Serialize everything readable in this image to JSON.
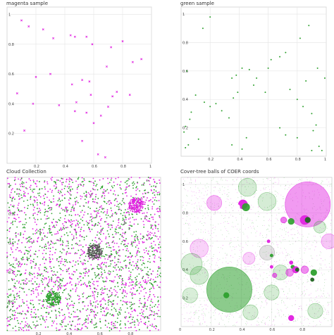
{
  "chart_data": [
    {
      "type": "scatter",
      "title": "magenta sample",
      "xlim": [
        0,
        1
      ],
      "ylim": [
        0,
        1.05
      ],
      "xticks": [
        "0.2",
        "0.4",
        "0.6",
        "0.8",
        "1"
      ],
      "yticks": [
        "0.2",
        "0.4",
        "0.6",
        "0.8",
        "1"
      ],
      "grid": true,
      "series": [
        {
          "color": "#e020e0",
          "marker": "x",
          "points": [
            [
              0.1,
              0.96
            ],
            [
              0.15,
              0.92
            ],
            [
              0.25,
              0.9
            ],
            [
              0.32,
              0.84
            ],
            [
              0.44,
              0.86
            ],
            [
              0.47,
              0.85
            ],
            [
              0.55,
              0.85
            ],
            [
              0.59,
              0.8
            ],
            [
              0.72,
              0.78
            ],
            [
              0.8,
              0.82
            ],
            [
              0.07,
              0.47
            ],
            [
              0.2,
              0.58
            ],
            [
              0.3,
              0.6
            ],
            [
              0.45,
              0.53
            ],
            [
              0.52,
              0.56
            ],
            [
              0.57,
              0.55
            ],
            [
              0.58,
              0.46
            ],
            [
              0.69,
              0.65
            ],
            [
              0.73,
              0.45
            ],
            [
              0.7,
              0.38
            ],
            [
              0.76,
              0.48
            ],
            [
              0.87,
              0.68
            ],
            [
              0.85,
              0.46
            ],
            [
              0.93,
              0.7
            ],
            [
              0.18,
              0.4
            ],
            [
              0.36,
              0.39
            ],
            [
              0.47,
              0.35
            ],
            [
              0.48,
              0.41
            ],
            [
              0.52,
              0.15
            ],
            [
              0.55,
              0.34
            ],
            [
              0.6,
              0.27
            ],
            [
              0.63,
              0.06
            ],
            [
              0.68,
              0.04
            ],
            [
              0.65,
              0.32
            ],
            [
              0.12,
              0.22
            ]
          ]
        }
      ]
    },
    {
      "type": "scatter",
      "title": "green sample",
      "xlim": [
        0,
        1
      ],
      "ylim": [
        0,
        1.05
      ],
      "xticks": [
        "0.2",
        "0.4",
        "0.6",
        "0.8",
        "1"
      ],
      "yticks": [
        "0.2",
        "0.4",
        "0.6",
        "0.8",
        "1"
      ],
      "grid": true,
      "series": [
        {
          "color": "#2ea02e",
          "marker": "dot",
          "points": [
            [
              0.15,
              0.9
            ],
            [
              0.2,
              0.98
            ],
            [
              0.04,
              0.6
            ],
            [
              0.1,
              0.43
            ],
            [
              0.16,
              0.38
            ],
            [
              0.2,
              0.35
            ],
            [
              0.24,
              0.37
            ],
            [
              0.28,
              0.32
            ],
            [
              0.33,
              0.27
            ],
            [
              0.35,
              0.55
            ],
            [
              0.38,
              0.57
            ],
            [
              0.39,
              0.45
            ],
            [
              0.42,
              0.62
            ],
            [
              0.47,
              0.61
            ],
            [
              0.5,
              0.5
            ],
            [
              0.52,
              0.55
            ],
            [
              0.6,
              0.62
            ],
            [
              0.62,
              0.68
            ],
            [
              0.68,
              0.7
            ],
            [
              0.72,
              0.73
            ],
            [
              0.75,
              0.47
            ],
            [
              0.82,
              0.83
            ],
            [
              0.88,
              0.92
            ],
            [
              0.8,
              0.4
            ],
            [
              0.84,
              0.35
            ],
            [
              0.9,
              0.3
            ],
            [
              0.93,
              0.22
            ],
            [
              0.95,
              0.07
            ],
            [
              0.97,
              0.04
            ],
            [
              0.9,
              0.04
            ],
            [
              0.03,
              0.06
            ],
            [
              0.05,
              0.08
            ],
            [
              0.12,
              0.12
            ],
            [
              0.02,
              0.17
            ],
            [
              0.03,
              0.21
            ],
            [
              0.06,
              0.26
            ],
            [
              0.07,
              0.31
            ],
            [
              0.35,
              0.08
            ],
            [
              0.42,
              0.05
            ],
            [
              0.68,
              0.2
            ],
            [
              0.58,
              0.45
            ],
            [
              0.36,
              0.41
            ],
            [
              0.45,
              0.13
            ],
            [
              0.72,
              0.15
            ],
            [
              0.86,
              0.53
            ],
            [
              0.94,
              0.62
            ],
            [
              0.99,
              0.55
            ],
            [
              0.8,
              0.13
            ],
            [
              0.91,
              0.18
            ]
          ]
        }
      ]
    },
    {
      "type": "scatter",
      "title": "Cloud Collection",
      "xlim": [
        0,
        1
      ],
      "ylim": [
        0,
        1.05
      ],
      "xticks": [
        "0.2",
        "0.4",
        "0.6",
        "0.8"
      ],
      "yticks": [
        "0.2",
        "0.4",
        "0.6",
        "0.8",
        "1"
      ],
      "grid": false,
      "series": [
        {
          "color": "#e020e0",
          "name": "",
          "density": "dense uniform"
        },
        {
          "color": "#2ea02e",
          "name": "",
          "density": "dense uniform"
        },
        {
          "color": "#555555",
          "name": "",
          "density": "dense uniform"
        }
      ],
      "clusters": [
        {
          "center": [
            0.84,
            0.86
          ],
          "radius": 0.05,
          "color": "#e020e0"
        },
        {
          "center": [
            0.57,
            0.54
          ],
          "radius": 0.05,
          "color": "#555555"
        },
        {
          "center": [
            0.3,
            0.22
          ],
          "radius": 0.05,
          "color": "#2ea02e"
        }
      ]
    },
    {
      "type": "scatter",
      "title": "Cover-tree balls of COER coords",
      "xlim": [
        0,
        1
      ],
      "ylim": [
        0,
        1.05
      ],
      "xticks": [
        "0",
        "0.2",
        "0.4",
        "0.6",
        "0.8"
      ],
      "yticks": [
        "0.2",
        "0.4",
        "0.6",
        "0.8",
        "1"
      ],
      "grid": true,
      "balls": [
        {
          "center": [
            0.84,
            0.86
          ],
          "r": 0.15,
          "color": "#e020e0",
          "opacity": 0.45
        },
        {
          "center": [
            0.32,
            0.26
          ],
          "r": 0.15,
          "color": "#2ea02e",
          "opacity": 0.55
        },
        {
          "center": [
            0.12,
            0.55
          ],
          "r": 0.06,
          "color": "#e020e0",
          "opacity": 0.2
        },
        {
          "center": [
            0.07,
            0.44
          ],
          "r": 0.07,
          "color": "#2ea02e",
          "opacity": 0.2
        },
        {
          "center": [
            0.12,
            0.36
          ],
          "r": 0.06,
          "color": "#2ea02e",
          "opacity": 0.22
        },
        {
          "center": [
            0.22,
            0.87
          ],
          "r": 0.05,
          "color": "#e020e0",
          "opacity": 0.3
        },
        {
          "center": [
            0.44,
            0.98
          ],
          "r": 0.06,
          "color": "#2ea02e",
          "opacity": 0.2
        },
        {
          "center": [
            0.57,
            0.88
          ],
          "r": 0.06,
          "color": "#2ea02e",
          "opacity": 0.2
        },
        {
          "center": [
            0.57,
            0.52
          ],
          "r": 0.05,
          "color": "#888888",
          "opacity": 0.25
        },
        {
          "center": [
            0.45,
            0.48
          ],
          "r": 0.04,
          "color": "#e020e0",
          "opacity": 0.2
        },
        {
          "center": [
            0.66,
            0.38
          ],
          "r": 0.05,
          "color": "#2ea02e",
          "opacity": 0.2
        },
        {
          "center": [
            0.89,
            0.11
          ],
          "r": 0.05,
          "color": "#2ea02e",
          "opacity": 0.2
        },
        {
          "center": [
            0.46,
            0.1
          ],
          "r": 0.05,
          "color": "#2ea02e",
          "opacity": 0.2
        },
        {
          "center": [
            0.6,
            0.24
          ],
          "r": 0.05,
          "color": "#2ea02e",
          "opacity": 0.2
        },
        {
          "center": [
            0.98,
            0.6
          ],
          "r": 0.05,
          "color": "#e020e0",
          "opacity": 0.25
        },
        {
          "center": [
            0.06,
            0.22
          ],
          "r": 0.05,
          "color": "#2ea02e",
          "opacity": 0.18
        },
        {
          "center": [
            0.92,
            0.7
          ],
          "r": 0.04,
          "color": "#2ea02e",
          "opacity": 0.2
        },
        {
          "center": [
            0.41,
            0.86
          ],
          "r": 0.03,
          "color": "#e020e0",
          "opacity": 0.95
        },
        {
          "center": [
            0.43,
            0.84
          ],
          "r": 0.025,
          "color": "#2ea02e",
          "opacity": 0.9
        },
        {
          "center": [
            0.37,
            0.84
          ],
          "r": 0.02,
          "color": "#ffffff",
          "opacity": 1
        },
        {
          "center": [
            0.82,
            0.75
          ],
          "r": 0.03,
          "color": "#e020e0",
          "opacity": 0.9
        },
        {
          "center": [
            0.84,
            0.75
          ],
          "r": 0.018,
          "color": "#226622",
          "opacity": 0.95
        },
        {
          "center": [
            0.73,
            0.74
          ],
          "r": 0.02,
          "color": "#2ea02e",
          "opacity": 0.9
        },
        {
          "center": [
            0.68,
            0.75
          ],
          "r": 0.02,
          "color": "#e020e0",
          "opacity": 0.6
        },
        {
          "center": [
            0.73,
            0.45
          ],
          "r": 0.012,
          "color": "#e020e0",
          "opacity": 0.95
        },
        {
          "center": [
            0.62,
            0.36
          ],
          "r": 0.015,
          "color": "#e020e0",
          "opacity": 0.6
        },
        {
          "center": [
            0.74,
            0.42
          ],
          "r": 0.012,
          "color": "#2ea02e",
          "opacity": 0.95
        },
        {
          "center": [
            0.82,
            0.4
          ],
          "r": 0.025,
          "color": "#e020e0",
          "opacity": 0.5
        },
        {
          "center": [
            0.72,
            0.38
          ],
          "r": 0.025,
          "color": "#e020e0",
          "opacity": 0.5
        },
        {
          "center": [
            0.88,
            0.38
          ],
          "r": 0.02,
          "color": "#2ea02e",
          "opacity": 0.95
        },
        {
          "center": [
            0.87,
            0.33
          ],
          "r": 0.012,
          "color": "#226622",
          "opacity": 0.95
        },
        {
          "center": [
            0.76,
            0.4
          ],
          "r": 0.022,
          "color": "#e020e0",
          "opacity": 0.9
        },
        {
          "center": [
            0.77,
            0.4
          ],
          "r": 0.012,
          "color": "#226622",
          "opacity": 0.95
        },
        {
          "center": [
            0.73,
            0.06
          ],
          "r": 0.018,
          "color": "#e020e0",
          "opacity": 0.95
        },
        {
          "center": [
            0.3,
            0.22
          ],
          "r": 0.018,
          "color": "#2ea02e",
          "opacity": 0.95
        },
        {
          "center": [
            0.58,
            0.6
          ],
          "r": 0.01,
          "color": "#e020e0",
          "opacity": 0.95
        },
        {
          "center": [
            0.6,
            0.5
          ],
          "r": 0.01,
          "color": "#2ea02e",
          "opacity": 0.95
        },
        {
          "center": [
            0.6,
            0.42
          ],
          "r": 0.01,
          "color": "#e020e0",
          "opacity": 0.95
        }
      ],
      "background_dots": [
        {
          "color": "#e020e0",
          "density": "light uniform"
        },
        {
          "color": "#2ea02e",
          "density": "light uniform"
        }
      ]
    }
  ]
}
